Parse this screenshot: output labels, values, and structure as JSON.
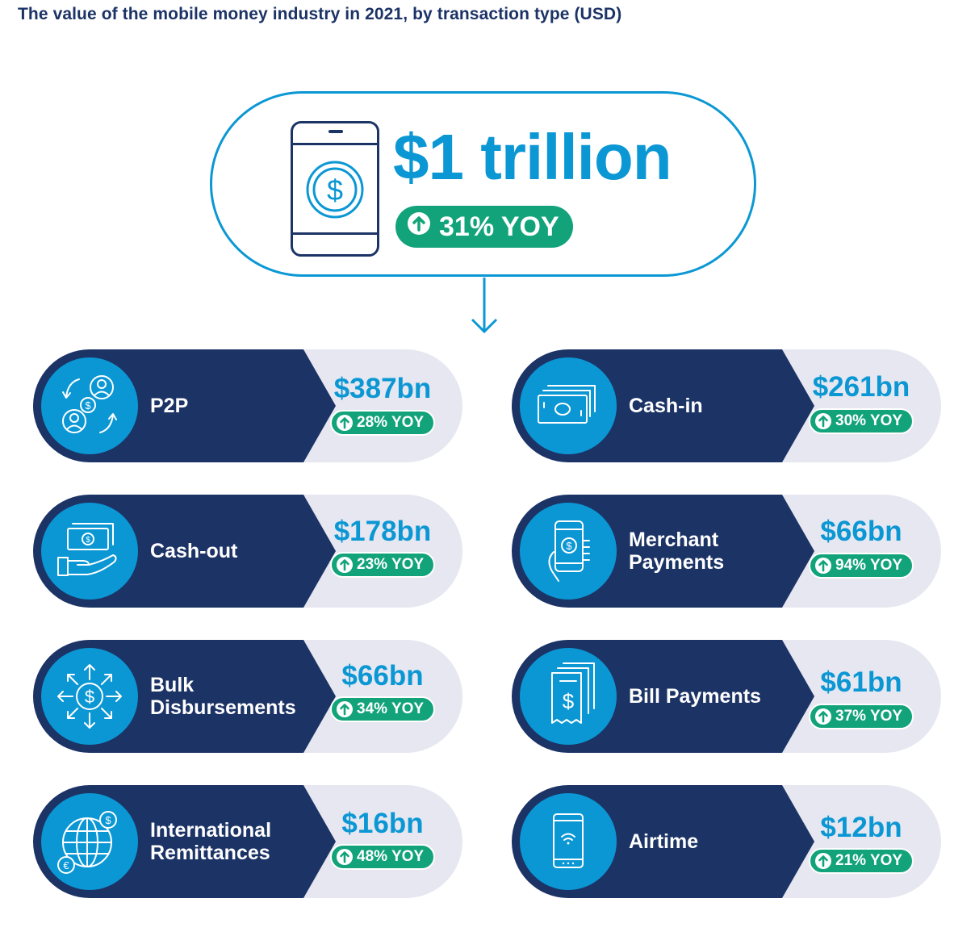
{
  "title": "The value of the mobile money industry in 2021, by transaction type (USD)",
  "hero": {
    "value": "$1 trillion",
    "yoy": "31% YOY"
  },
  "colors": {
    "navy": "#1c3366",
    "blue": "#0b97d4",
    "green": "#12a37b",
    "pill": "#e6e7f0"
  },
  "cards": [
    {
      "label": "P2P",
      "value": "$387bn",
      "yoy": "28% YOY",
      "icon": "p2p-people-exchange-icon"
    },
    {
      "label": "Cash-in",
      "value": "$261bn",
      "yoy": "30% YOY",
      "icon": "banknotes-icon"
    },
    {
      "label": "Cash-out",
      "value": "$178bn",
      "yoy": "23% YOY",
      "icon": "cash-hand-icon"
    },
    {
      "label": "Merchant Payments",
      "value": "$66bn",
      "yoy": "94% YOY",
      "icon": "phone-payment-icon"
    },
    {
      "label": "Bulk Disbursements",
      "value": "$66bn",
      "yoy": "34% YOY",
      "icon": "dollar-arrows-out-icon"
    },
    {
      "label": "Bill Payments",
      "value": "$61bn",
      "yoy": "37% YOY",
      "icon": "bill-receipt-icon"
    },
    {
      "label": "International Remittances",
      "value": "$16bn",
      "yoy": "48% YOY",
      "icon": "globe-currency-icon"
    },
    {
      "label": "Airtime",
      "value": "$12bn",
      "yoy": "21% YOY",
      "icon": "phone-wifi-icon"
    }
  ]
}
